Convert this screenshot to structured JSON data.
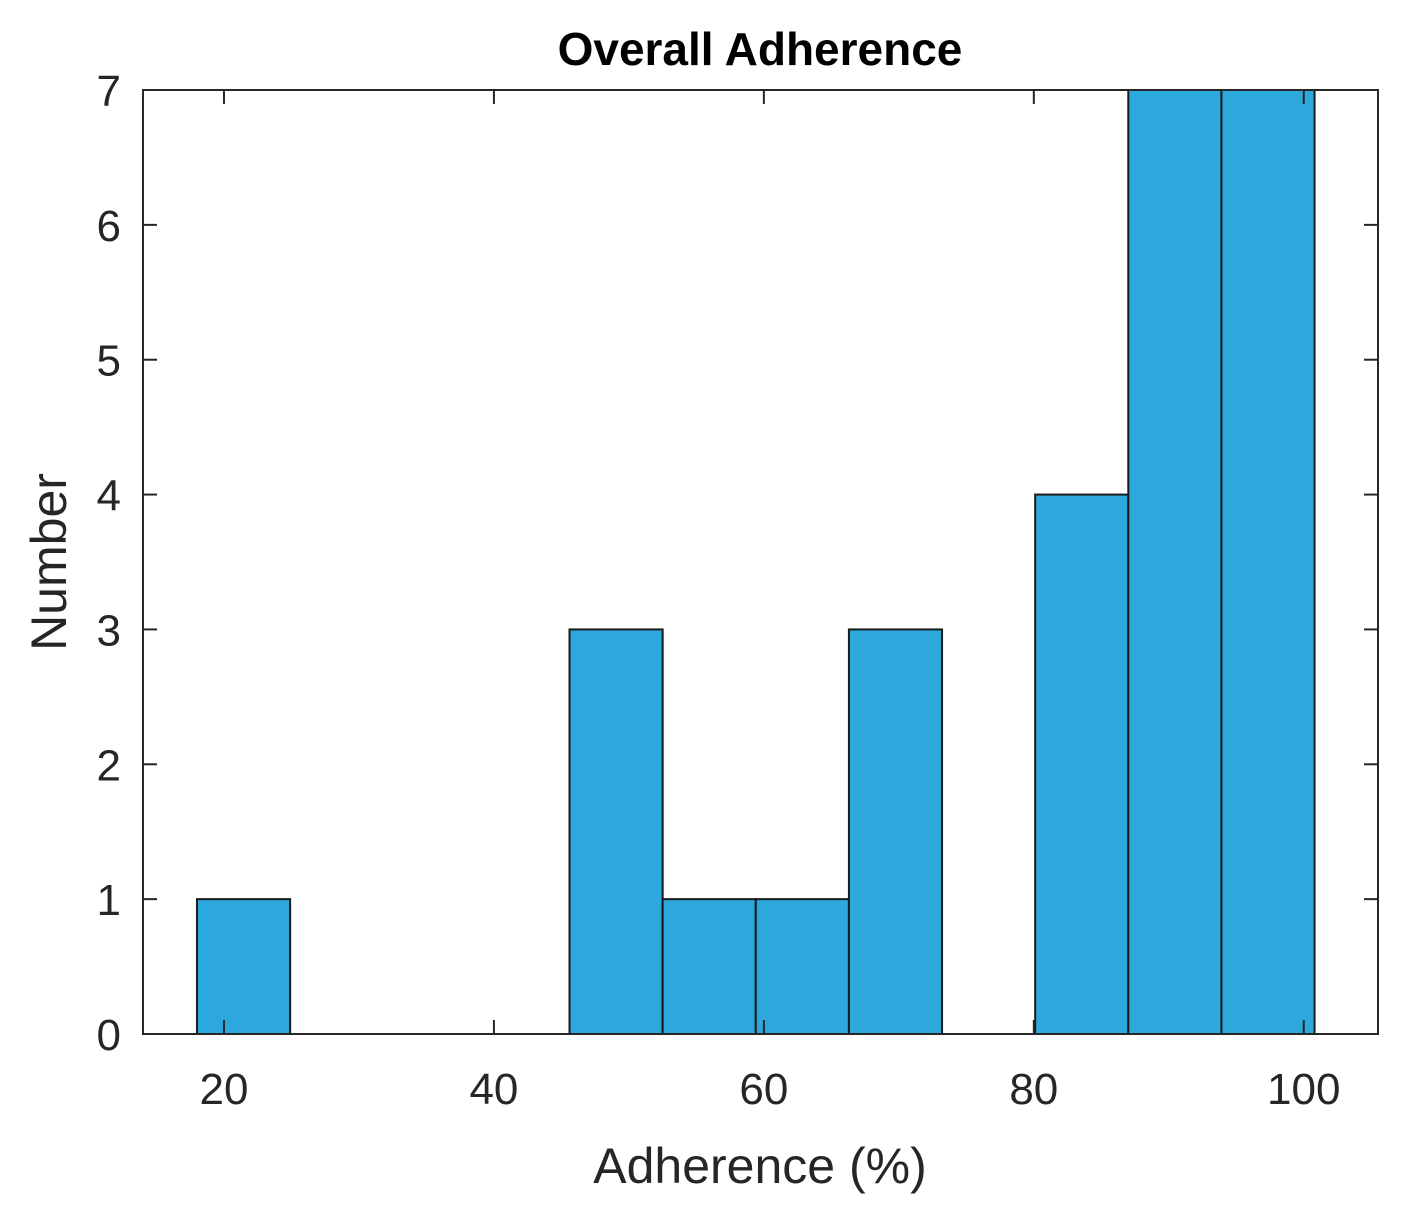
{
  "chart_data": {
    "type": "bar",
    "title": "Overall Adherence",
    "xlabel": "Adherence (%)",
    "ylabel": "Number",
    "xlim": [
      14,
      105.5
    ],
    "ylim": [
      0,
      7
    ],
    "x_ticks": [
      20,
      40,
      60,
      80,
      100
    ],
    "y_ticks": [
      0,
      1,
      2,
      3,
      4,
      5,
      6,
      7
    ],
    "grid": false,
    "bin_edges": [
      18,
      24.9,
      31.8,
      38.7,
      45.6,
      52.5,
      59.4,
      66.3,
      73.2,
      80.1,
      87.0,
      93.9,
      100.8
    ],
    "values": [
      1,
      0,
      0,
      0,
      3,
      1,
      1,
      3,
      0,
      4,
      7,
      7
    ],
    "bar_color": "#2ca8dc",
    "edge_color": "#1a1a1a"
  }
}
